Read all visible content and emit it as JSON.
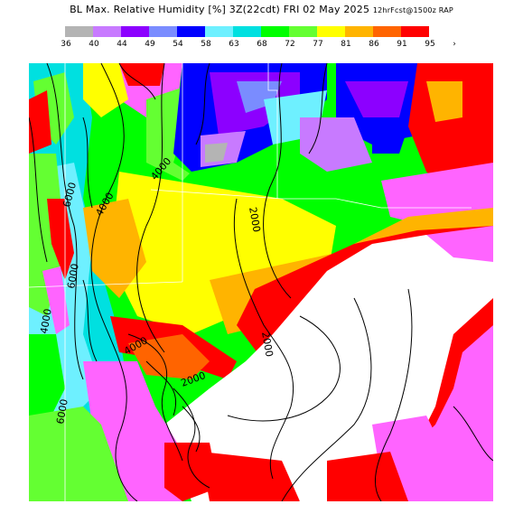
{
  "title": {
    "main": "BL Max. Relative Humidity",
    "units": "[%]",
    "time": "3Z(22cdt) FRI 02 May 2025",
    "run": "12hrFcst@1500z RAP"
  },
  "legend": {
    "values": [
      "36",
      "40",
      "44",
      "49",
      "54",
      "58",
      "63",
      "68",
      "72",
      "77",
      "81",
      "86",
      "91",
      "95"
    ],
    "colors": [
      "#b4b4b4",
      "#c87aff",
      "#8c00ff",
      "#7a8cff",
      "#0000ff",
      "#6ef0ff",
      "#00e0e0",
      "#00ff00",
      "#64ff32",
      "#ffff00",
      "#ffb400",
      "#ff6400",
      "#ff0000",
      "#ff64ff"
    ],
    "overflow_marker": "›"
  },
  "contour_labels": [
    "6000",
    "4000",
    "6000",
    "2000",
    "4000",
    "2000",
    "2000",
    "4000",
    "6000",
    "4000"
  ]
}
